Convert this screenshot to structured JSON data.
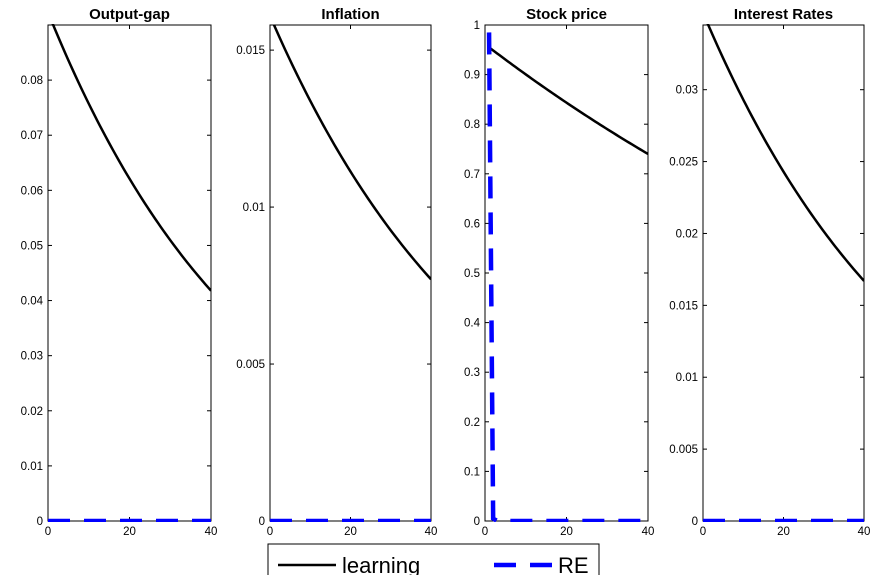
{
  "legend": {
    "entries": [
      {
        "label": "learning",
        "color": "#000000",
        "style": "solid"
      },
      {
        "label": "RE",
        "color": "#0000ff",
        "style": "dashed"
      }
    ]
  },
  "chart_data": [
    {
      "type": "line",
      "title": "Output-gap",
      "xlim": [
        0,
        40
      ],
      "ylim": [
        0,
        0.09
      ],
      "xticks": [
        0,
        20,
        40
      ],
      "yticks": [
        0,
        0.01,
        0.02,
        0.03,
        0.04,
        0.05,
        0.06,
        0.07,
        0.08
      ],
      "yticklabels": [
        "0",
        "0.01",
        "0.02",
        "0.03",
        "0.04",
        "0.05",
        "0.06",
        "0.07",
        "0.08"
      ],
      "series": [
        {
          "name": "learning",
          "x": [
            1,
            40
          ],
          "y_start": 0.0905,
          "y_end": 0.0418,
          "curve": "exponential"
        },
        {
          "name": "RE",
          "x": [
            0,
            40
          ],
          "y": [
            0,
            0
          ]
        }
      ]
    },
    {
      "type": "line",
      "title": "Inflation",
      "xlim": [
        0,
        40
      ],
      "ylim": [
        0,
        0.0158
      ],
      "xticks": [
        0,
        20,
        40
      ],
      "yticks": [
        0,
        0.005,
        0.01,
        0.015
      ],
      "yticklabels": [
        "0",
        "0.005",
        "0.01",
        "0.015"
      ],
      "series": [
        {
          "name": "learning",
          "x": [
            1,
            40
          ],
          "y_start": 0.0158,
          "y_end": 0.0077,
          "curve": "exponential"
        },
        {
          "name": "RE",
          "x": [
            0,
            40
          ],
          "y": [
            0,
            0
          ]
        }
      ]
    },
    {
      "type": "line",
      "title": "Stock price",
      "xlim": [
        0,
        40
      ],
      "ylim": [
        0,
        1
      ],
      "xticks": [
        0,
        20,
        40
      ],
      "yticks": [
        0,
        0.1,
        0.2,
        0.3,
        0.4,
        0.5,
        0.6,
        0.7,
        0.8,
        0.9,
        1
      ],
      "yticklabels": [
        "0",
        "0.1",
        "0.2",
        "0.3",
        "0.4",
        "0.5",
        "0.6",
        "0.7",
        "0.8",
        "0.9",
        "1"
      ],
      "series": [
        {
          "name": "learning",
          "x": [
            1,
            40
          ],
          "y_start": 0.955,
          "y_end": 0.74,
          "curve": "exponential"
        },
        {
          "name": "RE",
          "x": [
            1,
            2,
            3,
            40
          ],
          "y": [
            0.985,
            0.005,
            0,
            0
          ]
        }
      ]
    },
    {
      "type": "line",
      "title": "Interest Rates",
      "xlim": [
        0,
        40
      ],
      "ylim": [
        0,
        0.0345
      ],
      "xticks": [
        0,
        20,
        40
      ],
      "yticks": [
        0,
        0.005,
        0.01,
        0.015,
        0.02,
        0.025,
        0.03
      ],
      "yticklabels": [
        "0",
        "0.005",
        "0.01",
        "0.015",
        "0.02",
        "0.025",
        "0.03"
      ],
      "series": [
        {
          "name": "learning",
          "x": [
            1,
            40
          ],
          "y_start": 0.0347,
          "y_end": 0.0167,
          "curve": "exponential"
        },
        {
          "name": "RE",
          "x": [
            0,
            40
          ],
          "y": [
            0,
            0
          ]
        }
      ]
    }
  ]
}
